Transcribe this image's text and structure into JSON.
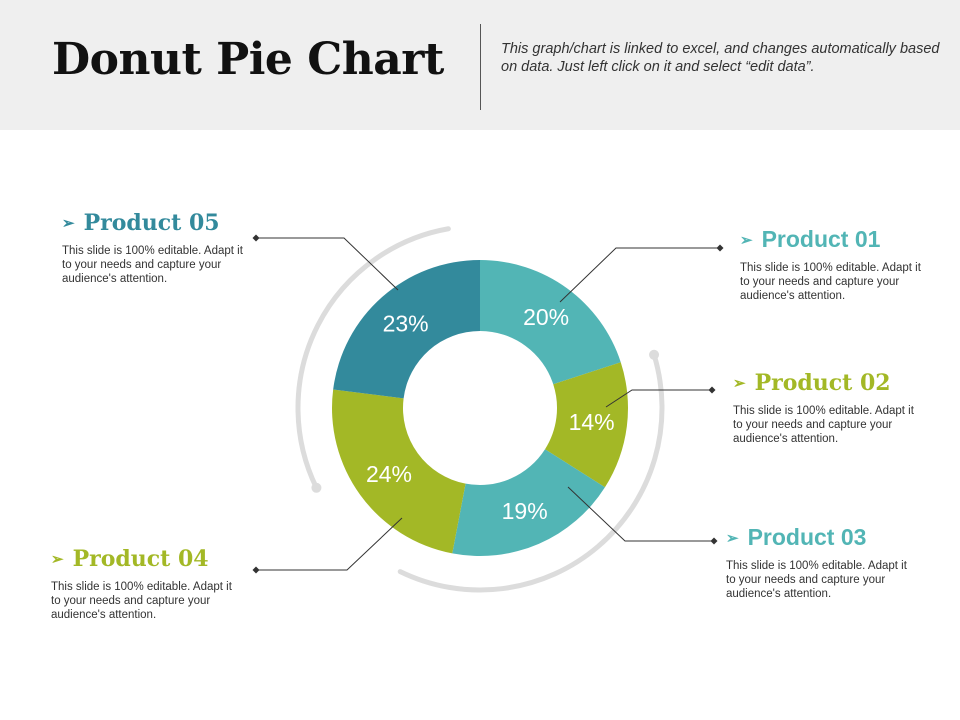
{
  "header": {
    "title": "Donut Pie Chart",
    "subtitle": "This graph/chart is linked to excel, and changes automatically based on data. Just left click on it and select “edit data”."
  },
  "colors": {
    "teal_light": "#52b5b5",
    "teal_dark": "#338a9c",
    "green": "#a3b826",
    "ring": "#dcdcdc",
    "leader": "#333333"
  },
  "chart_data": {
    "type": "pie",
    "variant": "donut",
    "categories": [
      "Product 01",
      "Product 02",
      "Product 03",
      "Product 04",
      "Product 05"
    ],
    "values": [
      20,
      14,
      19,
      24,
      23
    ],
    "labels": [
      "20%",
      "14%",
      "19%",
      "24%",
      "23%"
    ],
    "colors": [
      "#52b5b5",
      "#a3b826",
      "#52b5b5",
      "#a3b826",
      "#338a9c"
    ],
    "start_angle_deg": 0,
    "direction": "clockwise"
  },
  "callouts": [
    {
      "id": "product-01",
      "title": "Product 01",
      "text": "This slide is 100% editable. Adapt it to your needs and capture your audience's attention.",
      "color": "#52b5b5"
    },
    {
      "id": "product-02",
      "title": "Product 02",
      "text": "This slide is 100% editable. Adapt it to your needs and capture your audience's attention.",
      "color": "#a3b826"
    },
    {
      "id": "product-03",
      "title": "Product 03",
      "text": "This slide is 100% editable. Adapt it to your needs and capture your audience's attention.",
      "color": "#52b5b5"
    },
    {
      "id": "product-04",
      "title": "Product 04",
      "text": "This slide is 100% editable. Adapt it to your needs and capture your audience's attention.",
      "color": "#a3b826"
    },
    {
      "id": "product-05",
      "title": "Product 05",
      "text": "This slide is 100% editable. Adapt it to your needs and capture your audience's attention.",
      "color": "#338a9c"
    }
  ]
}
